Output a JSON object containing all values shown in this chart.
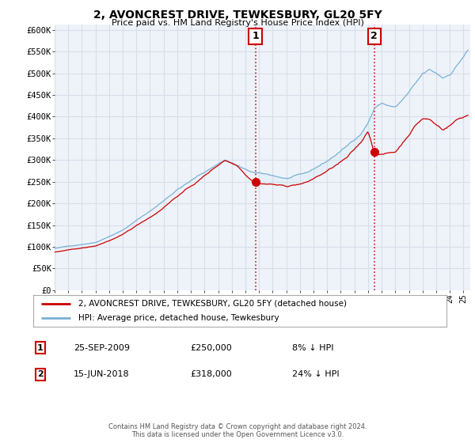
{
  "title": "2, AVONCREST DRIVE, TEWKESBURY, GL20 5FY",
  "subtitle": "Price paid vs. HM Land Registry's House Price Index (HPI)",
  "ylim": [
    0,
    612500
  ],
  "yticks": [
    0,
    50000,
    100000,
    150000,
    200000,
    250000,
    300000,
    350000,
    400000,
    450000,
    500000,
    550000,
    600000
  ],
  "ytick_labels": [
    "£0",
    "£50K",
    "£100K",
    "£150K",
    "£200K",
    "£250K",
    "£300K",
    "£350K",
    "£400K",
    "£450K",
    "£500K",
    "£550K",
    "£600K"
  ],
  "xlim_start": 1995.0,
  "xlim_end": 2025.5,
  "hpi_color": "#7ab0d4",
  "property_color": "#cc0000",
  "shade_color": "#ddeef8",
  "plot_bg": "#eef3fa",
  "grid_color": "#d8dde8",
  "sale1_date": 2009.73,
  "sale1_price": 250000,
  "sale2_date": 2018.46,
  "sale2_price": 318000,
  "legend_property": "2, AVONCREST DRIVE, TEWKESBURY, GL20 5FY (detached house)",
  "legend_hpi": "HPI: Average price, detached house, Tewkesbury",
  "note1_label": "1",
  "note1_date": "25-SEP-2009",
  "note1_price": "£250,000",
  "note1_pct": "8% ↓ HPI",
  "note2_label": "2",
  "note2_date": "15-JUN-2018",
  "note2_price": "£318,000",
  "note2_pct": "24% ↓ HPI",
  "footer": "Contains HM Land Registry data © Crown copyright and database right 2024.\nThis data is licensed under the Open Government Licence v3.0."
}
